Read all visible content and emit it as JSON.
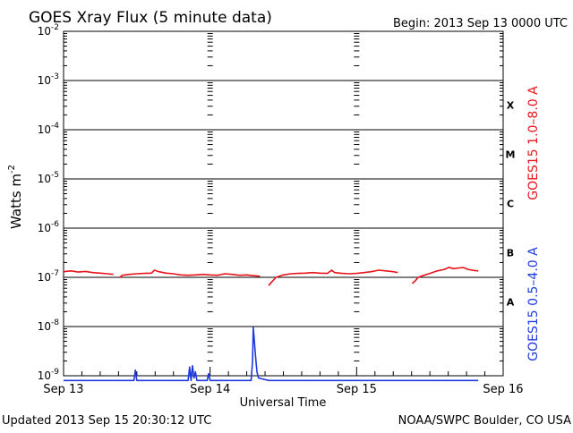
{
  "chart_data": {
    "type": "line",
    "title": "GOES Xray Flux (5 minute data)",
    "begin_label": "Begin:  2013 Sep 13 0000 UTC",
    "xlabel": "Universal Time",
    "ylabel": {
      "base": "Watts m",
      "exponent": "-2"
    },
    "x_ticks": [
      "Sep 13",
      "Sep 14",
      "Sep 15",
      "Sep 16"
    ],
    "xlim_days": [
      0,
      3
    ],
    "ylim": [
      1e-09,
      0.01
    ],
    "y_scale": "log",
    "y_ticks": [
      {
        "base": "10",
        "exp": "-2"
      },
      {
        "base": "10",
        "exp": "-3"
      },
      {
        "base": "10",
        "exp": "-4"
      },
      {
        "base": "10",
        "exp": "-5"
      },
      {
        "base": "10",
        "exp": "-6"
      },
      {
        "base": "10",
        "exp": "-7"
      },
      {
        "base": "10",
        "exp": "-8"
      },
      {
        "base": "10",
        "exp": "-9"
      }
    ],
    "flare_classes": [
      "X",
      "M",
      "C",
      "B",
      "A"
    ],
    "series": [
      {
        "name": "GOES15 1.0–8.0 A",
        "color": "#e8141c",
        "points": [
          [
            0.0,
            1.3e-07
          ],
          [
            0.05,
            1.35e-07
          ],
          [
            0.1,
            1.28e-07
          ],
          [
            0.15,
            1.32e-07
          ],
          [
            0.2,
            1.25e-07
          ],
          [
            0.25,
            1.22e-07
          ],
          [
            0.3,
            1.18e-07
          ],
          [
            0.34,
            1.15e-07
          ],
          null,
          [
            0.38,
            9.8e-08
          ],
          [
            0.4,
            1.1e-07
          ],
          [
            0.45,
            1.15e-07
          ],
          [
            0.5,
            1.18e-07
          ],
          [
            0.55,
            1.2e-07
          ],
          [
            0.6,
            1.22e-07
          ],
          [
            0.62,
            1.4e-07
          ],
          [
            0.65,
            1.3e-07
          ],
          [
            0.7,
            1.22e-07
          ],
          [
            0.75,
            1.18e-07
          ],
          [
            0.8,
            1.12e-07
          ],
          [
            0.85,
            1.1e-07
          ],
          [
            0.9,
            1.12e-07
          ],
          [
            0.95,
            1.15e-07
          ],
          [
            1.0,
            1.12e-07
          ],
          [
            1.05,
            1.1e-07
          ],
          [
            1.1,
            1.18e-07
          ],
          [
            1.15,
            1.15e-07
          ],
          [
            1.2,
            1.1e-07
          ],
          [
            1.25,
            1.12e-07
          ],
          [
            1.3,
            1.08e-07
          ],
          [
            1.34,
            1.05e-07
          ],
          null,
          [
            1.4,
            6.8e-08
          ],
          [
            1.42,
            8e-08
          ],
          [
            1.45,
            1e-07
          ],
          [
            1.5,
            1.12e-07
          ],
          [
            1.55,
            1.18e-07
          ],
          [
            1.6,
            1.2e-07
          ],
          [
            1.65,
            1.22e-07
          ],
          [
            1.7,
            1.25e-07
          ],
          [
            1.75,
            1.22e-07
          ],
          [
            1.8,
            1.2e-07
          ],
          [
            1.83,
            1.4e-07
          ],
          [
            1.85,
            1.25e-07
          ],
          [
            1.9,
            1.2e-07
          ],
          [
            1.95,
            1.18e-07
          ],
          [
            2.0,
            1.2e-07
          ],
          [
            2.05,
            1.25e-07
          ],
          [
            2.1,
            1.3e-07
          ],
          [
            2.15,
            1.4e-07
          ],
          [
            2.2,
            1.35e-07
          ],
          [
            2.25,
            1.3e-07
          ],
          [
            2.28,
            1.25e-07
          ],
          null,
          [
            2.38,
            7.5e-08
          ],
          [
            2.4,
            8.5e-08
          ],
          [
            2.42,
            1e-07
          ],
          [
            2.45,
            1.08e-07
          ],
          [
            2.5,
            1.2e-07
          ],
          [
            2.55,
            1.35e-07
          ],
          [
            2.6,
            1.45e-07
          ],
          [
            2.63,
            1.6e-07
          ],
          [
            2.66,
            1.5e-07
          ],
          [
            2.7,
            1.55e-07
          ],
          [
            2.73,
            1.58e-07
          ],
          [
            2.76,
            1.45e-07
          ],
          [
            2.8,
            1.38e-07
          ],
          [
            2.83,
            1.35e-07
          ]
        ]
      },
      {
        "name": "GOES15 0.5–4.0 A",
        "color": "#1e3adc",
        "points": [
          [
            0.0,
            8e-10
          ],
          [
            0.48,
            8e-10
          ],
          [
            0.49,
            1.3e-09
          ],
          [
            0.5,
            8e-10
          ],
          [
            0.85,
            8e-10
          ],
          [
            0.86,
            1.5e-09
          ],
          [
            0.87,
            8e-10
          ],
          [
            0.88,
            1.6e-09
          ],
          [
            0.89,
            9e-10
          ],
          [
            0.9,
            1.2e-09
          ],
          [
            0.91,
            8e-10
          ],
          [
            0.98,
            8e-10
          ],
          [
            0.99,
            1.1e-09
          ],
          [
            1.0,
            8e-10
          ],
          [
            1.28,
            8e-10
          ],
          [
            1.29,
            2e-09
          ],
          [
            1.295,
            9.5e-09
          ],
          [
            1.3,
            6e-09
          ],
          [
            1.31,
            2.5e-09
          ],
          [
            1.32,
            1.2e-09
          ],
          [
            1.33,
            9e-10
          ],
          [
            1.4,
            8e-10
          ],
          [
            2.83,
            8e-10
          ]
        ]
      }
    ]
  },
  "footer": {
    "updated": "Updated 2013 Sep 15 20:30:12 UTC",
    "source": "NOAA/SWPC Boulder, CO USA"
  }
}
